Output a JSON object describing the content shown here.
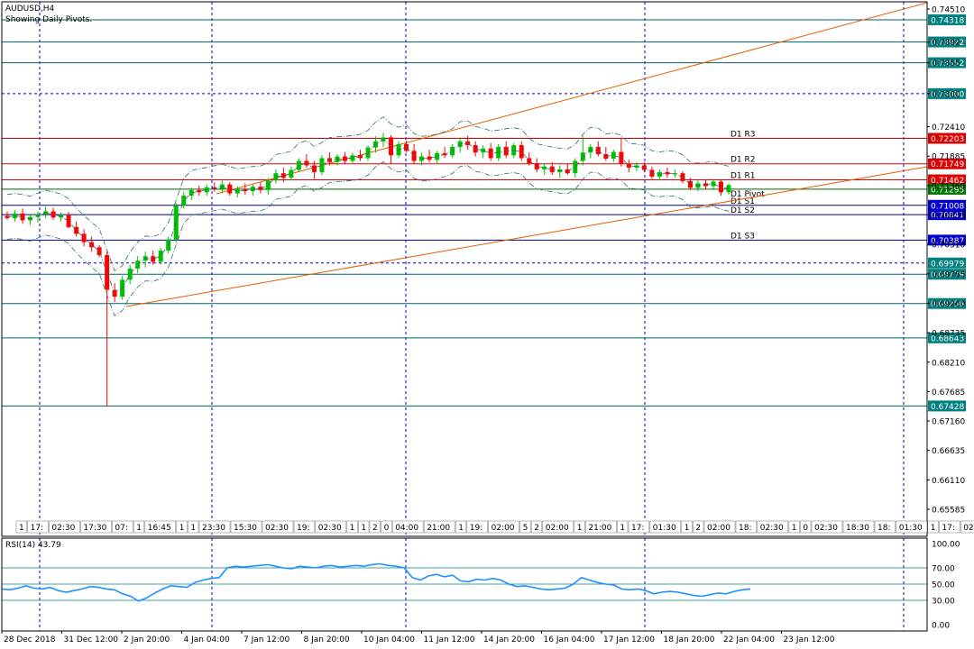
{
  "header": {
    "symbol": "AUDUSD,H4",
    "subtitle": "Showing Daily Pivots."
  },
  "rsi_header": {
    "label": "RSI(14) 43.79"
  },
  "colors": {
    "background": "#ffffff",
    "bull_candle": "#00c000",
    "bear_candle": "#ff0000",
    "resistance": "#dd0000",
    "support": "#000080",
    "hline": "#006666",
    "trendline": "#e65c00",
    "grid": "#0000cc",
    "rsi_line": "#1e90ff"
  },
  "chart_data": {
    "type": "candlestick",
    "ylim": [
      0.65585,
      0.7451
    ],
    "price_ticks": [
      0.7451,
      0.7392,
      0.7355,
      0.73,
      0.7241,
      0.71885,
      0.7136,
      0.70835,
      0.7031,
      0.69785,
      0.6926,
      0.68735,
      0.6821,
      0.67685,
      0.6716,
      0.66635,
      0.6611,
      0.65585
    ],
    "price_tick_labels": [
      "0.74510",
      "0.7392",
      "0.7355",
      "0.7300",
      "0.72410",
      "0.71885",
      "0.71360",
      "0.70835",
      "0.70310",
      "0.69785",
      "0.69260",
      "0.68735",
      "0.68210",
      "0.67685",
      "0.67160",
      "0.66635",
      "0.66110",
      "0.65585"
    ],
    "horizontal_levels": [
      {
        "value": 0.74318,
        "label": "0.74318",
        "kind": "hline"
      },
      {
        "value": 0.73922,
        "label": "0.73922",
        "kind": "hline"
      },
      {
        "value": 0.73552,
        "label": "0.73552",
        "kind": "hline"
      },
      {
        "value": 0.73,
        "label": "0.73000",
        "kind": "dashed"
      },
      {
        "value": 0.72203,
        "label": "0.72203",
        "kind": "resistance",
        "name": "D1  R3"
      },
      {
        "value": 0.71749,
        "label": "0.71749",
        "kind": "resistance",
        "name": "D1  R2"
      },
      {
        "value": 0.71462,
        "label": "0.71462",
        "kind": "resistance",
        "name": "D1  R1"
      },
      {
        "value": 0.71295,
        "label": "0.71295",
        "kind": "pivot",
        "name": "D1  Pivot"
      },
      {
        "value": 0.71008,
        "label": "0.71008",
        "kind": "support",
        "name": "D1  S1"
      },
      {
        "value": 0.70841,
        "label": "0.70841",
        "kind": "support",
        "name": "D1  S2"
      },
      {
        "value": 0.70387,
        "label": "0.70387",
        "kind": "support",
        "name": "D1  S3"
      },
      {
        "value": 0.69979,
        "label": "0.69979",
        "kind": "dashed"
      },
      {
        "value": 0.69779,
        "label": "0.69779",
        "kind": "hline"
      },
      {
        "value": 0.69256,
        "label": "0.69256",
        "kind": "hline"
      },
      {
        "value": 0.68643,
        "label": "0.68643",
        "kind": "hline"
      },
      {
        "value": 0.67428,
        "label": "0.67428",
        "kind": "hline"
      }
    ],
    "x_labels": [
      "28 Dec 2018",
      "31 Dec 12:00",
      "2 Jan 20:00",
      "4 Jan 04:00",
      "7 Jan 12:00",
      "8 Jan 20:00",
      "10 Jan 04:00",
      "11 Jan 12:00",
      "14 Jan 20:00",
      "16 Jan 04:00",
      "17 Jan 12:00",
      "18 Jan 20:00",
      "22 Jan 04:00",
      "23 Jan 12:00"
    ],
    "session_labels": [
      "1",
      "17:",
      "02:30",
      "17:30",
      "07:",
      "1",
      "16:45",
      "1",
      "1",
      "23:30",
      "15:30",
      "02:30",
      "19:",
      "02:30",
      "1",
      "1",
      "2",
      "0",
      "04:00",
      "21:00",
      "1",
      "19:",
      "02:00",
      "5",
      "2",
      "02:00",
      "1",
      "21:00",
      "1",
      "17:",
      "01:30",
      "1",
      "2",
      "02:00",
      "18:",
      "02:30",
      "1",
      "0",
      "02:30",
      "18:30",
      "18:",
      "01:30",
      "1",
      "17:",
      "02:00",
      "18:30",
      "1",
      "2",
      "02:00"
    ],
    "candles": [
      {
        "o": 0.7082,
        "h": 0.709,
        "l": 0.7075,
        "c": 0.7078
      },
      {
        "o": 0.7078,
        "h": 0.7092,
        "l": 0.7072,
        "c": 0.7086
      },
      {
        "o": 0.7086,
        "h": 0.7095,
        "l": 0.7068,
        "c": 0.7074
      },
      {
        "o": 0.7074,
        "h": 0.7085,
        "l": 0.7066,
        "c": 0.708
      },
      {
        "o": 0.708,
        "h": 0.709,
        "l": 0.707,
        "c": 0.7085
      },
      {
        "o": 0.7085,
        "h": 0.7098,
        "l": 0.7078,
        "c": 0.709
      },
      {
        "o": 0.709,
        "h": 0.7096,
        "l": 0.7075,
        "c": 0.7079
      },
      {
        "o": 0.7079,
        "h": 0.7088,
        "l": 0.7072,
        "c": 0.7083
      },
      {
        "o": 0.7083,
        "h": 0.7089,
        "l": 0.706,
        "c": 0.7062
      },
      {
        "o": 0.7062,
        "h": 0.7072,
        "l": 0.7045,
        "c": 0.705
      },
      {
        "o": 0.705,
        "h": 0.7058,
        "l": 0.7028,
        "c": 0.7035
      },
      {
        "o": 0.7035,
        "h": 0.7045,
        "l": 0.7018,
        "c": 0.7026
      },
      {
        "o": 0.7026,
        "h": 0.703,
        "l": 0.7008,
        "c": 0.7012
      },
      {
        "o": 0.7012,
        "h": 0.7018,
        "l": 0.6742,
        "c": 0.695
      },
      {
        "o": 0.695,
        "h": 0.6962,
        "l": 0.6928,
        "c": 0.6938
      },
      {
        "o": 0.6938,
        "h": 0.6975,
        "l": 0.6932,
        "c": 0.6968
      },
      {
        "o": 0.6968,
        "h": 0.6995,
        "l": 0.696,
        "c": 0.6988
      },
      {
        "o": 0.6988,
        "h": 0.701,
        "l": 0.698,
        "c": 0.7002
      },
      {
        "o": 0.7002,
        "h": 0.7018,
        "l": 0.699,
        "c": 0.701
      },
      {
        "o": 0.701,
        "h": 0.702,
        "l": 0.6995,
        "c": 0.7
      },
      {
        "o": 0.7,
        "h": 0.7025,
        "l": 0.6995,
        "c": 0.702
      },
      {
        "o": 0.702,
        "h": 0.7045,
        "l": 0.7015,
        "c": 0.704
      },
      {
        "o": 0.704,
        "h": 0.7105,
        "l": 0.7035,
        "c": 0.71
      },
      {
        "o": 0.71,
        "h": 0.7125,
        "l": 0.7095,
        "c": 0.7118
      },
      {
        "o": 0.7118,
        "h": 0.7132,
        "l": 0.711,
        "c": 0.7128
      },
      {
        "o": 0.7128,
        "h": 0.7136,
        "l": 0.7118,
        "c": 0.7124
      },
      {
        "o": 0.7124,
        "h": 0.7138,
        "l": 0.7118,
        "c": 0.7133
      },
      {
        "o": 0.7133,
        "h": 0.7142,
        "l": 0.7125,
        "c": 0.713
      },
      {
        "o": 0.713,
        "h": 0.7145,
        "l": 0.7122,
        "c": 0.7138
      },
      {
        "o": 0.7138,
        "h": 0.7142,
        "l": 0.7118,
        "c": 0.7122
      },
      {
        "o": 0.7122,
        "h": 0.7135,
        "l": 0.7115,
        "c": 0.713
      },
      {
        "o": 0.713,
        "h": 0.714,
        "l": 0.712,
        "c": 0.7126
      },
      {
        "o": 0.7126,
        "h": 0.7138,
        "l": 0.7118,
        "c": 0.7134
      },
      {
        "o": 0.7134,
        "h": 0.7142,
        "l": 0.7122,
        "c": 0.7128
      },
      {
        "o": 0.7128,
        "h": 0.715,
        "l": 0.712,
        "c": 0.7145
      },
      {
        "o": 0.7145,
        "h": 0.7165,
        "l": 0.714,
        "c": 0.7158
      },
      {
        "o": 0.7158,
        "h": 0.7168,
        "l": 0.7142,
        "c": 0.715
      },
      {
        "o": 0.715,
        "h": 0.717,
        "l": 0.7145,
        "c": 0.7164
      },
      {
        "o": 0.7164,
        "h": 0.7185,
        "l": 0.716,
        "c": 0.718
      },
      {
        "o": 0.718,
        "h": 0.7192,
        "l": 0.7168,
        "c": 0.7172
      },
      {
        "o": 0.7172,
        "h": 0.718,
        "l": 0.7148,
        "c": 0.716
      },
      {
        "o": 0.716,
        "h": 0.719,
        "l": 0.7155,
        "c": 0.7185
      },
      {
        "o": 0.7185,
        "h": 0.7195,
        "l": 0.7172,
        "c": 0.7178
      },
      {
        "o": 0.7178,
        "h": 0.7192,
        "l": 0.7172,
        "c": 0.7188
      },
      {
        "o": 0.7188,
        "h": 0.7196,
        "l": 0.7175,
        "c": 0.718
      },
      {
        "o": 0.718,
        "h": 0.7195,
        "l": 0.7176,
        "c": 0.719
      },
      {
        "o": 0.719,
        "h": 0.72,
        "l": 0.718,
        "c": 0.7185
      },
      {
        "o": 0.7185,
        "h": 0.7208,
        "l": 0.718,
        "c": 0.7204
      },
      {
        "o": 0.7204,
        "h": 0.7224,
        "l": 0.7195,
        "c": 0.7215
      },
      {
        "o": 0.7215,
        "h": 0.723,
        "l": 0.7205,
        "c": 0.7222
      },
      {
        "o": 0.7222,
        "h": 0.7226,
        "l": 0.7175,
        "c": 0.719
      },
      {
        "o": 0.719,
        "h": 0.7215,
        "l": 0.7185,
        "c": 0.721
      },
      {
        "o": 0.721,
        "h": 0.7216,
        "l": 0.7195,
        "c": 0.7198
      },
      {
        "o": 0.7198,
        "h": 0.721,
        "l": 0.7175,
        "c": 0.718
      },
      {
        "o": 0.718,
        "h": 0.7195,
        "l": 0.7172,
        "c": 0.7188
      },
      {
        "o": 0.7188,
        "h": 0.72,
        "l": 0.7178,
        "c": 0.7182
      },
      {
        "o": 0.7182,
        "h": 0.7198,
        "l": 0.7176,
        "c": 0.7194
      },
      {
        "o": 0.7194,
        "h": 0.7205,
        "l": 0.7185,
        "c": 0.719
      },
      {
        "o": 0.719,
        "h": 0.721,
        "l": 0.7185,
        "c": 0.7205
      },
      {
        "o": 0.7205,
        "h": 0.7222,
        "l": 0.7195,
        "c": 0.7215
      },
      {
        "o": 0.7215,
        "h": 0.7225,
        "l": 0.72,
        "c": 0.7208
      },
      {
        "o": 0.7208,
        "h": 0.7215,
        "l": 0.7188,
        "c": 0.7195
      },
      {
        "o": 0.7195,
        "h": 0.7208,
        "l": 0.7185,
        "c": 0.7202
      },
      {
        "o": 0.7202,
        "h": 0.7212,
        "l": 0.718,
        "c": 0.7185
      },
      {
        "o": 0.7185,
        "h": 0.721,
        "l": 0.718,
        "c": 0.7205
      },
      {
        "o": 0.7205,
        "h": 0.7215,
        "l": 0.7185,
        "c": 0.719
      },
      {
        "o": 0.719,
        "h": 0.7212,
        "l": 0.7185,
        "c": 0.7208
      },
      {
        "o": 0.7208,
        "h": 0.7215,
        "l": 0.718,
        "c": 0.7185
      },
      {
        "o": 0.7185,
        "h": 0.7195,
        "l": 0.7172,
        "c": 0.7176
      },
      {
        "o": 0.7176,
        "h": 0.7185,
        "l": 0.716,
        "c": 0.7165
      },
      {
        "o": 0.7165,
        "h": 0.7175,
        "l": 0.7155,
        "c": 0.717
      },
      {
        "o": 0.717,
        "h": 0.7178,
        "l": 0.7155,
        "c": 0.716
      },
      {
        "o": 0.716,
        "h": 0.7172,
        "l": 0.715,
        "c": 0.7165
      },
      {
        "o": 0.7165,
        "h": 0.7175,
        "l": 0.7155,
        "c": 0.7158
      },
      {
        "o": 0.7158,
        "h": 0.7185,
        "l": 0.715,
        "c": 0.718
      },
      {
        "o": 0.718,
        "h": 0.7225,
        "l": 0.7172,
        "c": 0.7195
      },
      {
        "o": 0.7195,
        "h": 0.721,
        "l": 0.7185,
        "c": 0.7205
      },
      {
        "o": 0.7205,
        "h": 0.7215,
        "l": 0.7188,
        "c": 0.7192
      },
      {
        "o": 0.7192,
        "h": 0.7205,
        "l": 0.718,
        "c": 0.7184
      },
      {
        "o": 0.7184,
        "h": 0.72,
        "l": 0.7178,
        "c": 0.7196
      },
      {
        "o": 0.7196,
        "h": 0.722,
        "l": 0.717,
        "c": 0.7175
      },
      {
        "o": 0.7175,
        "h": 0.7182,
        "l": 0.716,
        "c": 0.7168
      },
      {
        "o": 0.7168,
        "h": 0.7178,
        "l": 0.7162,
        "c": 0.7172
      },
      {
        "o": 0.7172,
        "h": 0.7178,
        "l": 0.716,
        "c": 0.7164
      },
      {
        "o": 0.7164,
        "h": 0.717,
        "l": 0.7148,
        "c": 0.7152
      },
      {
        "o": 0.7152,
        "h": 0.7165,
        "l": 0.7145,
        "c": 0.716
      },
      {
        "o": 0.716,
        "h": 0.7168,
        "l": 0.715,
        "c": 0.7156
      },
      {
        "o": 0.7156,
        "h": 0.7164,
        "l": 0.715,
        "c": 0.7158
      },
      {
        "o": 0.7158,
        "h": 0.7162,
        "l": 0.714,
        "c": 0.7144
      },
      {
        "o": 0.7144,
        "h": 0.715,
        "l": 0.7128,
        "c": 0.7132
      },
      {
        "o": 0.7132,
        "h": 0.7145,
        "l": 0.7126,
        "c": 0.714
      },
      {
        "o": 0.714,
        "h": 0.7146,
        "l": 0.713,
        "c": 0.7135
      },
      {
        "o": 0.7135,
        "h": 0.7148,
        "l": 0.7128,
        "c": 0.7143
      },
      {
        "o": 0.7143,
        "h": 0.7146,
        "l": 0.7118,
        "c": 0.7124
      },
      {
        "o": 0.7124,
        "h": 0.714,
        "l": 0.712,
        "c": 0.7137
      }
    ],
    "rsi": {
      "label": "RSI(14) 43.79",
      "ylim": [
        0,
        100
      ],
      "ticks": [
        "100.00",
        "70.00",
        "50.00",
        "30.00",
        "0.00"
      ],
      "tick_values": [
        100,
        70,
        50,
        30,
        0
      ],
      "levels": [
        70,
        50,
        30
      ],
      "values": [
        44,
        43,
        45,
        48,
        45,
        44,
        46,
        42,
        40,
        42,
        44,
        47,
        46,
        44,
        43,
        38,
        35,
        29,
        33,
        39,
        44,
        48,
        47,
        46,
        52,
        55,
        57,
        58,
        70,
        72,
        71,
        72,
        73,
        74,
        72,
        70,
        69,
        72,
        71,
        70,
        72,
        73,
        71,
        72,
        73,
        72,
        74,
        75,
        73,
        72,
        70,
        58,
        55,
        60,
        62,
        59,
        61,
        54,
        53,
        56,
        55,
        57,
        55,
        50,
        47,
        48,
        46,
        44,
        43,
        44,
        45,
        50,
        58,
        55,
        52,
        50,
        49,
        44,
        43,
        44,
        42,
        38,
        40,
        41,
        40,
        38,
        36,
        35,
        37,
        39,
        38,
        41,
        43,
        44
      ]
    }
  }
}
